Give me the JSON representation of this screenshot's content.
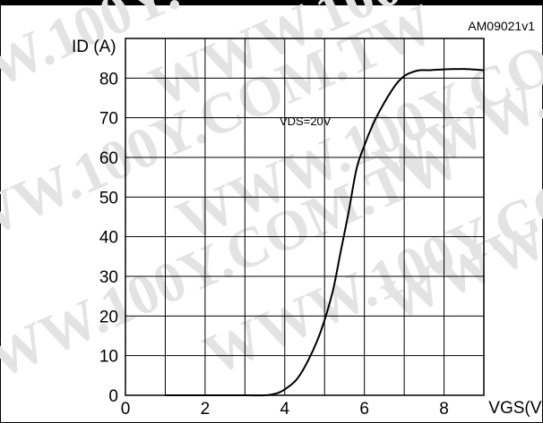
{
  "figure": {
    "reference_code": "AM09021v1"
  },
  "watermark": "WWW.100Y.COM.TW",
  "chart_data": {
    "type": "line",
    "xlabel": "VGS(V)",
    "ylabel": "ID (A)",
    "xlim": [
      0,
      9
    ],
    "ylim": [
      0,
      90
    ],
    "x_ticks": [
      0,
      2,
      4,
      6,
      8
    ],
    "y_ticks": [
      0,
      10,
      20,
      30,
      40,
      50,
      60,
      70,
      80
    ],
    "grid": true,
    "annotation": "VDS=20V",
    "series": [
      {
        "x": [
          1.0,
          3.0,
          3.5,
          3.8,
          4.0,
          4.3,
          4.6,
          4.9,
          5.2,
          5.4,
          5.6,
          5.8,
          6.0,
          6.2,
          6.4,
          6.6,
          6.8,
          7.0,
          7.2,
          7.4,
          7.6,
          8.0,
          8.5,
          9.0
        ],
        "y": [
          0,
          0,
          0,
          0.5,
          1.5,
          4,
          9,
          16,
          26,
          36,
          46,
          57,
          63,
          68,
          72,
          75.5,
          78.5,
          80.5,
          81.5,
          82,
          82,
          82.2,
          82.3,
          82
        ]
      }
    ]
  }
}
